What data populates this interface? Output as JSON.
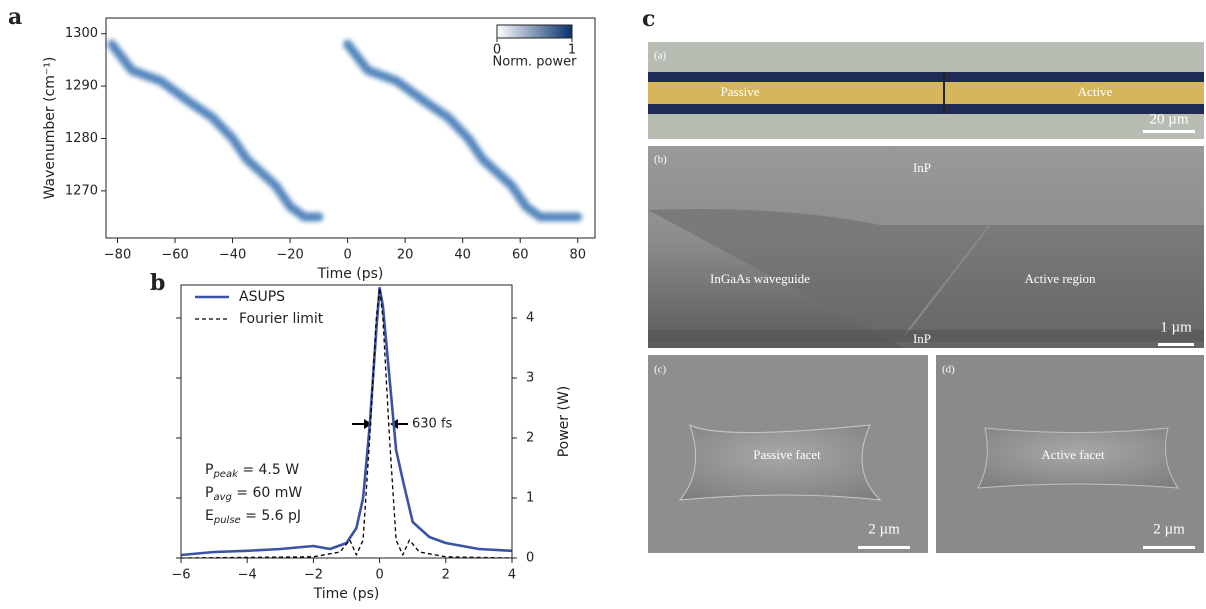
{
  "chart_data": [
    {
      "type": "heatmap",
      "panel_label": "a",
      "x_label": "Time (ps)",
      "y_label": "Wavenumber (cm⁻¹)",
      "x": [
        -82,
        -75,
        -65,
        -55,
        -47,
        -40,
        -35,
        -25,
        -20,
        -15,
        -10,
        -3,
        0,
        7,
        17,
        27,
        35,
        42,
        47,
        57,
        62,
        67,
        72,
        80
      ],
      "values": [
        1298,
        1293,
        1291,
        1287,
        1284,
        1280,
        1276,
        1271,
        1267,
        1265,
        1265,
        null,
        1298,
        1293,
        1291,
        1287,
        1284,
        1280,
        1276,
        1271,
        1267,
        1265,
        1265,
        1265
      ],
      "color": "#1f5fa8",
      "xlim": [
        -84,
        86
      ],
      "ylim": [
        1261,
        1303
      ],
      "xticks": [
        {
          "value": -80,
          "label": "−80"
        },
        {
          "value": -60,
          "label": "−60"
        },
        {
          "value": -40,
          "label": "−40"
        },
        {
          "value": -20,
          "label": "−20"
        },
        0,
        20,
        40,
        60,
        80
      ],
      "yticks": [
        1270,
        1280,
        1290,
        1300
      ],
      "colorbar": {
        "label": "Norm. power",
        "clim": [
          0,
          1
        ],
        "ticks": [
          0,
          1
        ],
        "colors": [
          "#ffffff",
          "#08306b"
        ]
      }
    },
    {
      "type": "line",
      "panel_label": "b",
      "x_label": "Time (ps)",
      "y_label": "Power (W)",
      "series": [
        {
          "name": "ASUPS",
          "color": "#3a53a4",
          "dash": false,
          "x": [
            -6,
            -5,
            -4,
            -3,
            -2,
            -1.5,
            -1,
            -0.7,
            -0.5,
            -0.3,
            -0.1,
            0,
            0.1,
            0.3,
            0.5,
            0.7,
            1,
            1.5,
            2,
            3,
            4
          ],
          "values": [
            0.05,
            0.1,
            0.12,
            0.15,
            0.2,
            0.15,
            0.25,
            0.5,
            1.0,
            2.2,
            3.8,
            4.5,
            4.2,
            3.0,
            1.8,
            1.3,
            0.6,
            0.35,
            0.25,
            0.15,
            0.12
          ]
        },
        {
          "name": "Fourier limit",
          "color": "#000000",
          "dash": true,
          "x": [
            -6,
            -2,
            -1.2,
            -0.9,
            -0.7,
            -0.5,
            -0.3,
            -0.1,
            0,
            0.1,
            0.3,
            0.5,
            0.7,
            0.9,
            1.2,
            2,
            4
          ],
          "values": [
            0,
            0.02,
            0.1,
            0.3,
            0.05,
            0.3,
            2,
            4,
            4.5,
            4,
            2,
            0.3,
            0.05,
            0.3,
            0.1,
            0.02,
            0
          ]
        }
      ],
      "xlim": [
        -6,
        4
      ],
      "ylim": [
        0,
        4.55
      ],
      "xticks": [
        {
          "value": -6,
          "label": "−6"
        },
        {
          "value": -4,
          "label": "−4"
        },
        {
          "value": -2,
          "label": "−2"
        },
        0,
        2,
        4
      ],
      "yticks": [
        0,
        1,
        2,
        3,
        4
      ],
      "legend": "upper left",
      "annotation": "630 fs",
      "parameters": [
        {
          "symbol": "P",
          "subscript": "peak",
          "text": " = 4.5 W"
        },
        {
          "symbol": "P",
          "subscript": "avg",
          "text": " = 60 mW"
        },
        {
          "symbol": "E",
          "subscript": "pulse",
          "text": " = 5.6 pJ"
        }
      ]
    }
  ],
  "panel_c": {
    "panel_label": "c",
    "images": [
      {
        "label": "(a)",
        "texts": [
          "Passive",
          "Active"
        ],
        "scale": "20 µm"
      },
      {
        "label": "(b)",
        "texts": [
          "InP",
          "InGaAs waveguide",
          "Active region",
          "InP"
        ],
        "scale": "1 µm"
      },
      {
        "label": "(c)",
        "texts": [
          "Passive facet"
        ],
        "scale": "2 µm"
      },
      {
        "label": "(d)",
        "texts": [
          "Active facet"
        ],
        "scale": "2 µm"
      }
    ]
  }
}
